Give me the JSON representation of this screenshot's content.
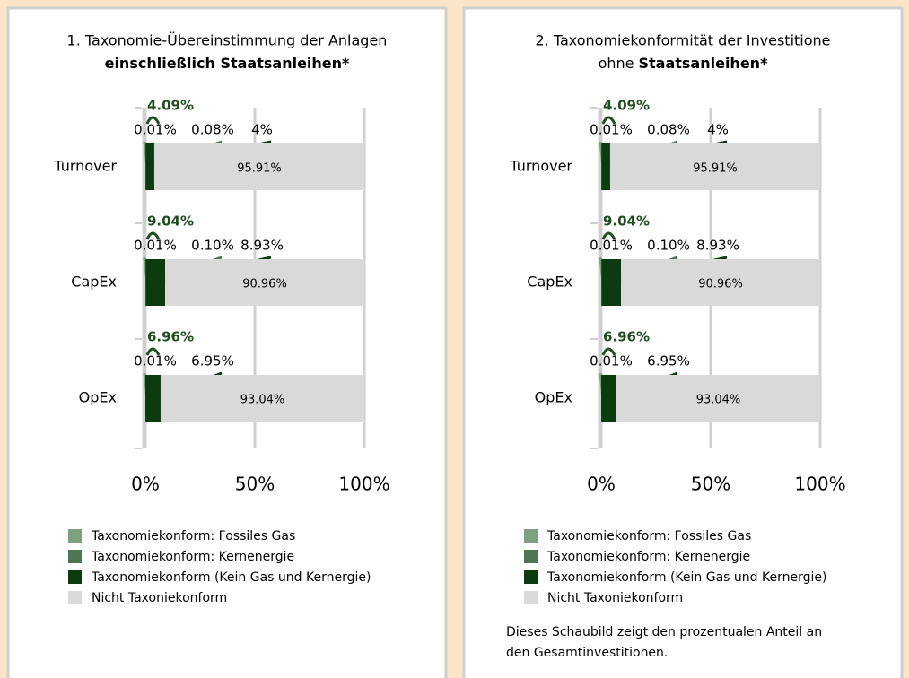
{
  "chart_data": [
    {
      "type": "bar",
      "orientation": "horizontal",
      "stacked": true,
      "title": "1. Taxonomie-Übereinstimmung der Anlagen",
      "subtitle": "einschließlich Staatsanleihen*",
      "categories": [
        "Turnover",
        "CapEx",
        "OpEx"
      ],
      "series": [
        {
          "name": "Taxonomiekonform: Fossiles Gas",
          "color": "#7f9f80",
          "values": [
            0.01,
            0.01,
            0.01
          ],
          "value_labels": [
            "0.01%",
            "0.01%",
            "0.01%"
          ]
        },
        {
          "name": "Taxonomiekonform: Kernenergie",
          "color": "#4d7656",
          "values": [
            0.08,
            0.1,
            null
          ],
          "value_labels": [
            "0.08%",
            "0.10%",
            null
          ]
        },
        {
          "name": "Taxonomiekonform (Kein Gas und Kernergie)",
          "color": "#0b3b0e",
          "values": [
            4,
            8.93,
            6.95
          ],
          "value_labels": [
            "4%",
            "8.93%",
            "6.95%"
          ]
        },
        {
          "name": "Nicht Taxoniekonform",
          "color": "#d9d9d9",
          "values": [
            95.91,
            90.96,
            93.04
          ],
          "value_labels": [
            "95.91%",
            "90.96%",
            "93.04%"
          ]
        }
      ],
      "totals": {
        "values": [
          4.09,
          9.04,
          6.96
        ],
        "value_labels": [
          "4.09%",
          "9.04%",
          "6.96%"
        ],
        "color": "#1f4f1f"
      },
      "xlim": [
        0,
        100
      ],
      "xticks": [
        {
          "value": 0,
          "label": "0%"
        },
        {
          "value": 50,
          "label": "50%"
        },
        {
          "value": 100,
          "label": "100%"
        }
      ],
      "grid": true
    },
    {
      "type": "bar",
      "orientation": "horizontal",
      "stacked": true,
      "title": "2. Taxonomiekonformität der Investitione",
      "subtitle_prefix": "ohne",
      "subtitle": "Staatsanleihen*",
      "categories": [
        "Turnover",
        "CapEx",
        "OpEx"
      ],
      "series": [
        {
          "name": "Taxonomiekonform: Fossiles Gas",
          "color": "#7f9f80",
          "values": [
            0.01,
            0.01,
            0.01
          ],
          "value_labels": [
            "0.01%",
            "0.01%",
            "0.01%"
          ]
        },
        {
          "name": "Taxonomiekonform: Kernenergie",
          "color": "#4d7656",
          "values": [
            0.08,
            0.1,
            null
          ],
          "value_labels": [
            "0.08%",
            "0.10%",
            null
          ]
        },
        {
          "name": "Taxonomiekonform (Kein Gas und Kernergie)",
          "color": "#0b3b0e",
          "values": [
            4,
            8.93,
            6.95
          ],
          "value_labels": [
            "4%",
            "8.93%",
            "6.95%"
          ]
        },
        {
          "name": "Nicht Taxoniekonform",
          "color": "#d9d9d9",
          "values": [
            95.91,
            90.96,
            93.04
          ],
          "value_labels": [
            "95.91%",
            "90.96%",
            "93.04%"
          ]
        }
      ],
      "totals": {
        "values": [
          4.09,
          9.04,
          6.96
        ],
        "value_labels": [
          "4.09%",
          "9.04%",
          "6.96%"
        ],
        "color": "#1f4f1f"
      },
      "xlim": [
        0,
        100
      ],
      "xticks": [
        {
          "value": 0,
          "label": "0%"
        },
        {
          "value": 50,
          "label": "50%"
        },
        {
          "value": 100,
          "label": "100%"
        }
      ],
      "grid": true,
      "note": [
        "Dieses Schaubild zeigt den prozentualen Anteil an",
        "den Gesamtinvestitionen."
      ]
    }
  ]
}
